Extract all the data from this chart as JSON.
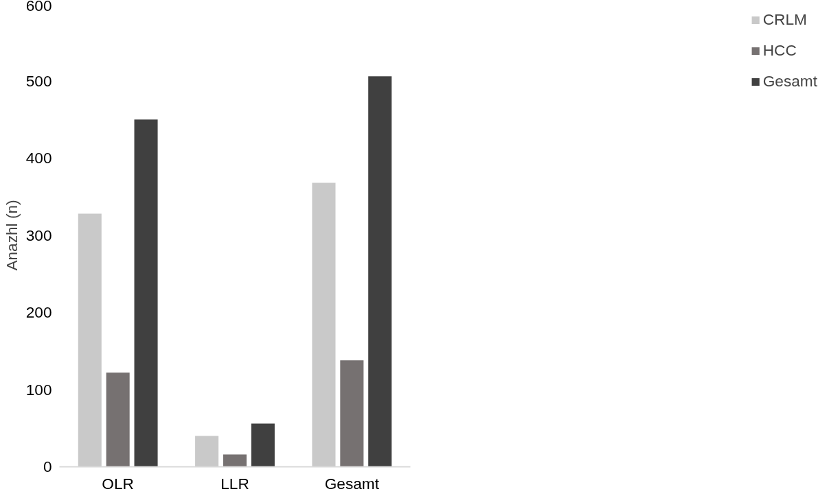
{
  "chart_data": {
    "type": "bar",
    "ylabel": "Anazhl (n)",
    "categories": [
      "OLR",
      "LLR",
      "Gesamt"
    ],
    "series": [
      {
        "name": "CRLM",
        "color": "#c9c9c9",
        "values": [
          328,
          40,
          368
        ]
      },
      {
        "name": "HCC",
        "color": "#767171",
        "values": [
          122,
          16,
          138
        ]
      },
      {
        "name": "Gesamt",
        "color": "#404040",
        "values": [
          450,
          56,
          506
        ]
      }
    ],
    "ylim": [
      0,
      600
    ],
    "yticks": [
      0,
      100,
      200,
      300,
      400,
      500,
      600
    ],
    "grid": false,
    "legend": "right"
  }
}
